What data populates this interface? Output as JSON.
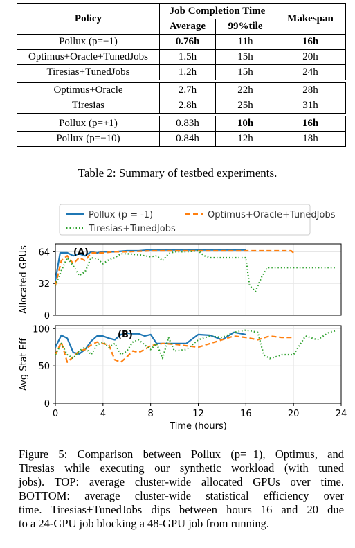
{
  "table": {
    "headers": {
      "policy": "Policy",
      "jct": "Job Completion Time",
      "average": "Average",
      "p99": "99%tile",
      "makespan": "Makespan"
    },
    "groups": [
      [
        {
          "policy": "Pollux (p=−1)",
          "avg": "0.76h",
          "p99": "11h",
          "makespan": "16h",
          "bold": [
            "avg",
            "makespan"
          ]
        },
        {
          "policy": "Optimus+Oracle+TunedJobs",
          "avg": "1.5h",
          "p99": "15h",
          "makespan": "20h",
          "bold": []
        },
        {
          "policy": "Tiresias+TunedJobs",
          "avg": "1.2h",
          "p99": "15h",
          "makespan": "24h",
          "bold": []
        }
      ],
      [
        {
          "policy": "Optimus+Oracle",
          "avg": "2.7h",
          "p99": "22h",
          "makespan": "28h",
          "bold": []
        },
        {
          "policy": "Tiresias",
          "avg": "2.8h",
          "p99": "25h",
          "makespan": "31h",
          "bold": []
        }
      ],
      [
        {
          "policy": "Pollux (p=+1)",
          "avg": "0.83h",
          "p99": "10h",
          "makespan": "16h",
          "bold": [
            "p99",
            "makespan"
          ]
        },
        {
          "policy": "Pollux (p=−10)",
          "avg": "0.84h",
          "p99": "12h",
          "makespan": "18h",
          "bold": []
        }
      ]
    ],
    "caption": "Table 2: Summary of testbed experiments."
  },
  "chart_data": [
    {
      "type": "line",
      "panel_label": "(A)",
      "ylabel": "Allocated GPUs",
      "xlim": [
        0,
        24
      ],
      "ylim": [
        0,
        72
      ],
      "yticks": [
        0,
        32,
        64
      ],
      "legend": "top",
      "series": [
        {
          "name": "Pollux (p = -1)",
          "color": "#1f77b4",
          "style": "solid",
          "x": [
            0,
            0.4,
            1,
            1.5,
            2,
            2.5,
            3,
            3.5,
            4,
            5,
            6,
            7,
            8,
            10,
            12,
            14,
            16
          ],
          "y": [
            35,
            63,
            63,
            60,
            62,
            60,
            64,
            63,
            64,
            64,
            65,
            65,
            66,
            66,
            66,
            66,
            66
          ]
        },
        {
          "name": "Optimus+Oracle+TunedJobs",
          "color": "#ff7f0e",
          "style": "dashed",
          "x": [
            0,
            0.5,
            1,
            1.5,
            2,
            2.5,
            3,
            4,
            5,
            6,
            8,
            10,
            12,
            14,
            16,
            18,
            19.8,
            20
          ],
          "y": [
            30,
            55,
            60,
            52,
            58,
            55,
            63,
            63,
            64,
            64,
            65,
            65,
            65,
            65,
            65,
            65,
            65,
            63
          ]
        },
        {
          "name": "Tiresias+TunedJobs",
          "color": "#2ca02c",
          "style": "dotted",
          "x": [
            0,
            0.5,
            1,
            1.5,
            2,
            2.5,
            3,
            3.5,
            4,
            4.5,
            5,
            5.5,
            6,
            7,
            8,
            8.5,
            9,
            9.5,
            10,
            11,
            12,
            12.5,
            13,
            14,
            15,
            15.5,
            16,
            16.3,
            16.8,
            17.3,
            17.8,
            18.5,
            19,
            20,
            21,
            22,
            23,
            23.5
          ],
          "y": [
            30,
            45,
            58,
            50,
            40,
            44,
            58,
            57,
            52,
            56,
            58,
            62,
            62,
            61,
            59,
            60,
            55,
            62,
            64,
            64,
            65,
            60,
            58,
            58,
            58,
            58,
            58,
            30,
            24,
            38,
            48,
            48,
            48,
            48,
            48,
            48,
            48,
            48
          ]
        }
      ]
    },
    {
      "type": "line",
      "panel_label": "(B)",
      "ylabel": "Avg Stat Eff",
      "xlabel": "Time (hours)",
      "xlim": [
        0,
        24
      ],
      "ylim": [
        0,
        100
      ],
      "yticks": [
        0,
        50,
        100
      ],
      "xticks": [
        0,
        4,
        8,
        12,
        16,
        20,
        24
      ],
      "series": [
        {
          "name": "Pollux (p = -1)",
          "color": "#1f77b4",
          "style": "solid",
          "x": [
            0,
            0.5,
            1,
            1.5,
            2,
            2.5,
            3,
            3.5,
            4,
            4.5,
            5,
            5.5,
            6,
            6.5,
            7,
            7.5,
            8,
            8.5,
            9,
            10,
            11,
            12,
            13,
            14,
            15,
            16
          ],
          "y": [
            75,
            91,
            87,
            68,
            66,
            72,
            83,
            90,
            90,
            87,
            85,
            92,
            94,
            93,
            93,
            90,
            92,
            80,
            80,
            80,
            80,
            92,
            91,
            85,
            95,
            92
          ]
        },
        {
          "name": "Optimus+Oracle+TunedJobs",
          "color": "#ff7f0e",
          "style": "dashed",
          "x": [
            0,
            0.5,
            1,
            1.5,
            2,
            2.5,
            3,
            3.5,
            4,
            4.5,
            5,
            5.5,
            6,
            6.5,
            7,
            7.5,
            8,
            9,
            10,
            11,
            12,
            13,
            14,
            15,
            16,
            17,
            18,
            19,
            20
          ],
          "y": [
            65,
            82,
            55,
            62,
            70,
            72,
            78,
            82,
            80,
            78,
            58,
            55,
            62,
            70,
            68,
            72,
            77,
            80,
            79,
            77,
            75,
            80,
            85,
            90,
            88,
            85,
            90,
            88,
            88
          ]
        },
        {
          "name": "Tiresias+TunedJobs",
          "color": "#2ca02c",
          "style": "dotted",
          "x": [
            0,
            0.5,
            1,
            1.5,
            2,
            2.5,
            3,
            3.5,
            4,
            4.5,
            5,
            5.5,
            6,
            6.5,
            7,
            7.5,
            8,
            8.5,
            9,
            9.5,
            10,
            11,
            12,
            13,
            14,
            15,
            16,
            17,
            17.5,
            18,
            18.5,
            19,
            20,
            21,
            22,
            23,
            23.5
          ],
          "y": [
            65,
            80,
            65,
            60,
            70,
            75,
            65,
            78,
            82,
            75,
            80,
            65,
            70,
            82,
            85,
            78,
            72,
            80,
            60,
            88,
            70,
            72,
            85,
            90,
            88,
            95,
            98,
            95,
            65,
            60,
            62,
            65,
            65,
            90,
            85,
            95,
            97
          ]
        }
      ]
    }
  ],
  "figure_caption": {
    "lines": [
      "Figure 5: Comparison between Pollux (p=−1), Optimus, and",
      "Tiresias while executing our synthetic workload (with tuned",
      "jobs). TOP: average cluster-wide allocated GPUs over time.",
      "BOTTOM: average cluster-wide statistical efficiency over",
      "time. Tiresias+TunedJobs dips between hours 16 and 20 due",
      "to a 24-GPU job blocking a 48-GPU job from running."
    ]
  }
}
